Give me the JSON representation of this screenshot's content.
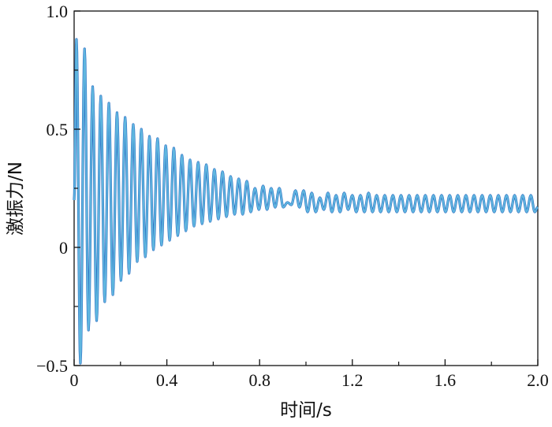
{
  "chart_data": {
    "type": "line",
    "title": "",
    "xlabel": "时间/s",
    "ylabel": "激振力/N",
    "xlim": [
      0,
      2.0
    ],
    "ylim": [
      -0.5,
      1.0
    ],
    "x_ticks": [
      "0",
      "0.4",
      "0.8",
      "1.2",
      "1.6",
      "2.0"
    ],
    "y_ticks": [
      "−0.5",
      "0",
      "0.5",
      "1.0"
    ],
    "grid": false,
    "colors": {
      "dark": "#2f6fc4",
      "light": "#5fb6df"
    },
    "series": [
      {
        "x": [
          0.01,
          0.027,
          0.045,
          0.062,
          0.08,
          0.097,
          0.115,
          0.132,
          0.15,
          0.167,
          0.185,
          0.202,
          0.22,
          0.237,
          0.255,
          0.272,
          0.29,
          0.307,
          0.325,
          0.342,
          0.36,
          0.377,
          0.395,
          0.412,
          0.43,
          0.447,
          0.465,
          0.482,
          0.5,
          0.517,
          0.535,
          0.552,
          0.57,
          0.587,
          0.605,
          0.622,
          0.64,
          0.657,
          0.675,
          0.692,
          0.71,
          0.727,
          0.745,
          0.762,
          0.78,
          0.797,
          0.815,
          0.832,
          0.85,
          0.867,
          0.885,
          0.902,
          0.92,
          0.937,
          0.955,
          0.972,
          0.99,
          1.007,
          1.025,
          1.042,
          1.06,
          1.077,
          1.095,
          1.112,
          1.13,
          1.147,
          1.165,
          1.182,
          1.2,
          1.217,
          1.235,
          1.252,
          1.27,
          1.287,
          1.305,
          1.322,
          1.34,
          1.357,
          1.375,
          1.392,
          1.41,
          1.427,
          1.445,
          1.462,
          1.48,
          1.497,
          1.515,
          1.532,
          1.55,
          1.567,
          1.585,
          1.602,
          1.62,
          1.637,
          1.655,
          1.672,
          1.69,
          1.707,
          1.725,
          1.742,
          1.76,
          1.777,
          1.795,
          1.812,
          1.83,
          1.847,
          1.865,
          1.882,
          1.9,
          1.917,
          1.935,
          1.952,
          1.97,
          1.987
        ],
        "y": [
          0.88,
          -0.49,
          0.84,
          -0.35,
          0.68,
          -0.31,
          0.64,
          -0.23,
          0.61,
          -0.2,
          0.57,
          -0.14,
          0.55,
          -0.11,
          0.52,
          -0.06,
          0.5,
          -0.04,
          0.47,
          -0.01,
          0.46,
          0.01,
          0.43,
          0.03,
          0.42,
          0.05,
          0.39,
          0.07,
          0.37,
          0.09,
          0.36,
          0.1,
          0.35,
          0.11,
          0.33,
          0.12,
          0.32,
          0.13,
          0.3,
          0.14,
          0.29,
          0.14,
          0.28,
          0.15,
          0.25,
          0.16,
          0.26,
          0.16,
          0.25,
          0.17,
          0.25,
          0.17,
          0.19,
          0.18,
          0.24,
          0.17,
          0.24,
          0.15,
          0.23,
          0.15,
          0.21,
          0.16,
          0.23,
          0.15,
          0.22,
          0.15,
          0.23,
          0.16,
          0.22,
          0.15,
          0.22,
          0.15,
          0.23,
          0.15,
          0.22,
          0.15,
          0.22,
          0.15,
          0.22,
          0.15,
          0.22,
          0.15,
          0.22,
          0.15,
          0.22,
          0.15,
          0.22,
          0.15,
          0.22,
          0.15,
          0.22,
          0.15,
          0.22,
          0.15,
          0.22,
          0.15,
          0.22,
          0.15,
          0.22,
          0.15,
          0.22,
          0.15,
          0.22,
          0.15,
          0.22,
          0.15,
          0.22,
          0.15,
          0.22,
          0.15,
          0.22,
          0.15,
          0.22,
          0.15
        ]
      }
    ]
  }
}
